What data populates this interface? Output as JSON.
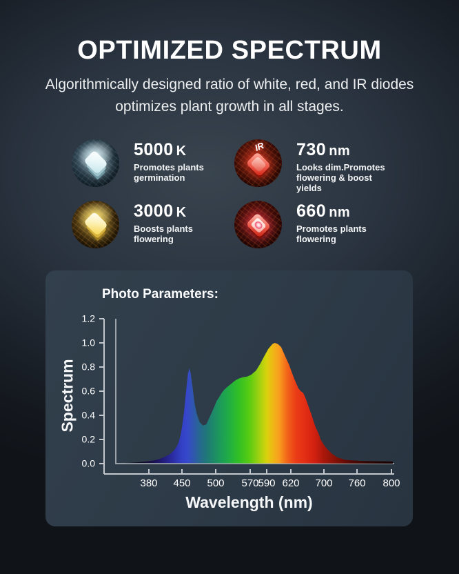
{
  "header": {
    "title": "OPTIMIZED SPECTRUM",
    "subtitle_line1": "Algorithmically designed ratio of white, red, and IR diodes",
    "subtitle_line2": "optimizes plant growth in all stages."
  },
  "diodes": [
    {
      "value": "5000",
      "unit": "K",
      "desc1": "Promotes plants",
      "desc2": "germination",
      "icon": "white-led-chip"
    },
    {
      "value": "730",
      "unit": "nm",
      "desc1": "Looks dim.Promotes",
      "desc2": "flowering & boost yields",
      "icon": "ir-led-chip",
      "icon_text": "IR"
    },
    {
      "value": "3000",
      "unit": "K",
      "desc1": "Boosts plants",
      "desc2": "flowering",
      "icon": "warm-led-chip"
    },
    {
      "value": "660",
      "unit": "nm",
      "desc1": "Promotes plants",
      "desc2": "flowering",
      "icon": "red-led-chip"
    }
  ],
  "chart": {
    "title": "Photo Parameters:",
    "xlabel": "Wavelength (nm)",
    "ylabel": "Spectrum"
  },
  "chart_data": {
    "type": "area",
    "title": "Photo Parameters:",
    "xlabel": "Wavelength (nm)",
    "ylabel": "Spectrum",
    "xticks": [
      380,
      450,
      500,
      570,
      590,
      620,
      700,
      760,
      800
    ],
    "yticks": [
      0,
      0.2,
      0.4,
      0.6,
      0.8,
      1.0,
      1.2
    ],
    "ylim": [
      0,
      1.2
    ],
    "x_axis_note": "non-linear wavelength axis, ticks approximately evenly spaced",
    "legend": [],
    "grid": false,
    "points": [
      [
        330,
        0.005
      ],
      [
        345,
        0.008
      ],
      [
        360,
        0.012
      ],
      [
        375,
        0.018
      ],
      [
        388,
        0.025
      ],
      [
        400,
        0.035
      ],
      [
        410,
        0.05
      ],
      [
        418,
        0.065
      ],
      [
        425,
        0.08
      ],
      [
        432,
        0.105
      ],
      [
        438,
        0.135
      ],
      [
        443,
        0.175
      ],
      [
        447,
        0.235
      ],
      [
        450,
        0.3
      ],
      [
        453,
        0.42
      ],
      [
        455,
        0.54
      ],
      [
        457,
        0.65
      ],
      [
        459,
        0.75
      ],
      [
        461,
        0.79
      ],
      [
        463,
        0.75
      ],
      [
        466,
        0.62
      ],
      [
        469,
        0.49
      ],
      [
        472,
        0.41
      ],
      [
        476,
        0.345
      ],
      [
        481,
        0.315
      ],
      [
        486,
        0.325
      ],
      [
        491,
        0.385
      ],
      [
        497,
        0.46
      ],
      [
        502,
        0.52
      ],
      [
        507,
        0.55
      ],
      [
        512,
        0.585
      ],
      [
        517,
        0.61
      ],
      [
        522,
        0.63
      ],
      [
        528,
        0.65
      ],
      [
        534,
        0.67
      ],
      [
        540,
        0.69
      ],
      [
        547,
        0.705
      ],
      [
        555,
        0.715
      ],
      [
        563,
        0.72
      ],
      [
        571,
        0.735
      ],
      [
        577,
        0.77
      ],
      [
        582,
        0.825
      ],
      [
        587,
        0.89
      ],
      [
        592,
        0.95
      ],
      [
        597,
        0.99
      ],
      [
        600,
        1.0
      ],
      [
        604,
        0.99
      ],
      [
        608,
        0.965
      ],
      [
        613,
        0.89
      ],
      [
        618,
        0.815
      ],
      [
        623,
        0.75
      ],
      [
        628,
        0.705
      ],
      [
        633,
        0.665
      ],
      [
        638,
        0.625
      ],
      [
        644,
        0.6
      ],
      [
        650,
        0.585
      ],
      [
        654,
        0.555
      ],
      [
        658,
        0.52
      ],
      [
        663,
        0.47
      ],
      [
        669,
        0.415
      ],
      [
        675,
        0.35
      ],
      [
        680,
        0.3
      ],
      [
        687,
        0.25
      ],
      [
        692,
        0.2
      ],
      [
        700,
        0.155
      ],
      [
        706,
        0.12
      ],
      [
        715,
        0.08
      ],
      [
        725,
        0.05
      ],
      [
        738,
        0.032
      ],
      [
        752,
        0.026
      ],
      [
        766,
        0.022
      ],
      [
        780,
        0.02
      ],
      [
        800,
        0.018
      ]
    ],
    "gradient": [
      [
        0,
        "#0a0512"
      ],
      [
        7,
        "#140b30"
      ],
      [
        12,
        "#1e1460"
      ],
      [
        17,
        "#2a2a9e"
      ],
      [
        20.5,
        "#3240c4"
      ],
      [
        22.5,
        "#3747cc"
      ],
      [
        25,
        "#2f58ac"
      ],
      [
        27.5,
        "#256a8c"
      ],
      [
        30,
        "#1f7a76"
      ],
      [
        33.5,
        "#1d9360"
      ],
      [
        37,
        "#1fa94a"
      ],
      [
        41,
        "#2fbe27"
      ],
      [
        45,
        "#55cb13"
      ],
      [
        48.5,
        "#9ad111"
      ],
      [
        51.5,
        "#d8d30c"
      ],
      [
        53.5,
        "#eeb915"
      ],
      [
        56,
        "#f99e1e"
      ],
      [
        59,
        "#f2641a"
      ],
      [
        62,
        "#ea3d16"
      ],
      [
        65.5,
        "#e22d14"
      ],
      [
        69,
        "#d02010"
      ],
      [
        72,
        "#ab180b"
      ],
      [
        77,
        "#7f1107"
      ],
      [
        82,
        "#540a05"
      ],
      [
        88,
        "#300603"
      ],
      [
        94,
        "#1d0302"
      ],
      [
        100,
        "#120201"
      ]
    ],
    "colors": {
      "panel_bg": "#2d3a47",
      "page_bg": "#1c232c",
      "axis": "#c3c9ce",
      "text": "#ffffff"
    }
  }
}
